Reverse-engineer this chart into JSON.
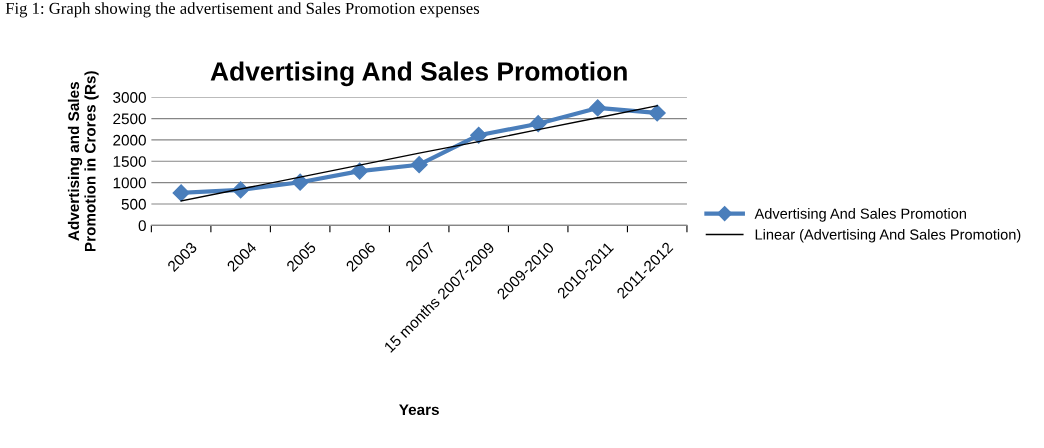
{
  "chart_data": {
    "type": "line",
    "title": "Advertising And Sales Promotion",
    "xlabel": "Years",
    "ylabel": "Advertising and Sales\nPromotion in Crores (Rs)",
    "annotations": [
      "Fig 1: Graph showing the advertisement and Sales Promotion expenses"
    ],
    "categories": [
      "2003",
      "2004",
      "2005",
      "2006",
      "2007",
      "15 months 2007-2009",
      "2009-2010",
      "2010-2011",
      "2011-2012"
    ],
    "series": [
      {
        "name": "Advertising And Sales Promotion",
        "color": "#4a7ebb",
        "marker": "diamond",
        "values": [
          760,
          830,
          1010,
          1270,
          1420,
          2110,
          2380,
          2750,
          2630
        ]
      },
      {
        "name": "Linear (Advertising And Sales Promotion)",
        "color": "#000000",
        "marker": "none",
        "values": [
          570,
          850,
          1130,
          1410,
          1690,
          1960,
          2240,
          2520,
          2800
        ]
      }
    ],
    "ylim": [
      0,
      3000
    ],
    "yticks": [
      0,
      500,
      1000,
      1500,
      2000,
      2500,
      3000
    ],
    "grid": "y",
    "legend": "right"
  }
}
